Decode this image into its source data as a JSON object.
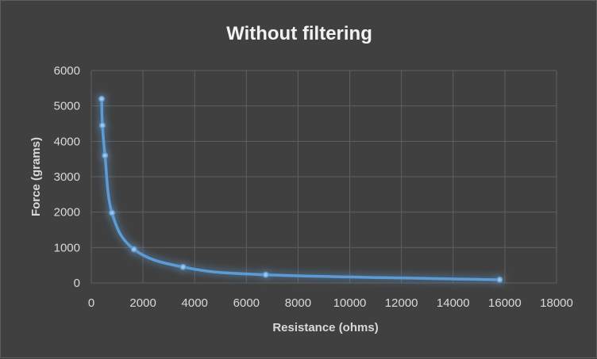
{
  "chart_data": {
    "type": "scatter",
    "title": "Without filtering",
    "xlabel": "Resistance (ohms)",
    "ylabel": "Force (grams)",
    "xlim": [
      0,
      18000
    ],
    "ylim": [
      0,
      6000
    ],
    "x_ticks": [
      "0",
      "2000",
      "4000",
      "6000",
      "8000",
      "10000",
      "12000",
      "14000",
      "16000",
      "18000"
    ],
    "y_ticks": [
      "0",
      "1000",
      "2000",
      "3000",
      "4000",
      "5000",
      "6000"
    ],
    "grid": true,
    "line": "smoothed",
    "series": [
      {
        "color": "#5b9bd5",
        "x": [
          400,
          430,
          530,
          800,
          1650,
          3550,
          6750,
          15800
        ],
        "y": [
          5200,
          4450,
          3600,
          1980,
          950,
          450,
          230,
          90
        ]
      }
    ]
  }
}
